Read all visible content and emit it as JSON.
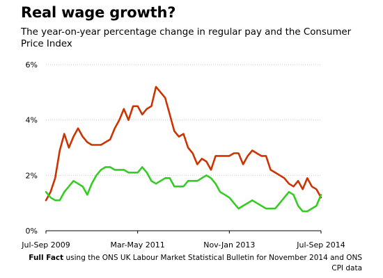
{
  "title": "Real wage growth?",
  "subtitle": "The year-on-year percentage change in regular pay and the Consumer Price Index",
  "source": {
    "brand": "Full Fact",
    "text": " using the ONS UK Labour Market Statistical Bulletin for November 2014 and ONS CPI data"
  },
  "colors": {
    "pay": "#cc3300",
    "cpi": "#33cc22",
    "axis": "#000000",
    "grid": "#cccccc"
  },
  "chart_data": {
    "type": "line",
    "title": "Real wage growth?",
    "xlabel": "",
    "ylabel": "",
    "ylim": [
      0,
      6
    ],
    "y_ticks": [
      "0%",
      "2%",
      "4%",
      "6%"
    ],
    "x_ticks": [
      "Jul-Sep 2009",
      "Mar-May 2011",
      "Nov-Jan 2013",
      "Jul-Sep 2014"
    ],
    "grid": "horizontal dotted",
    "legend": "none",
    "x": [
      "Jul-Sep 2009",
      "Aug-Oct 2009",
      "Sep-Nov 2009",
      "Oct-Dec 2009",
      "Nov-Jan 2010",
      "Dec-Feb 2010",
      "Jan-Mar 2010",
      "Feb-Apr 2010",
      "Mar-May 2010",
      "Apr-Jun 2010",
      "May-Jul 2010",
      "Jun-Aug 2010",
      "Jul-Sep 2010",
      "Aug-Oct 2010",
      "Sep-Nov 2010",
      "Oct-Dec 2010",
      "Nov-Jan 2011",
      "Dec-Feb 2011",
      "Jan-Mar 2011",
      "Feb-Apr 2011",
      "Mar-May 2011",
      "Apr-Jun 2011",
      "May-Jul 2011",
      "Jun-Aug 2011",
      "Jul-Sep 2011",
      "Aug-Oct 2011",
      "Sep-Nov 2011",
      "Oct-Dec 2011",
      "Nov-Jan 2012",
      "Dec-Feb 2012",
      "Jan-Mar 2012",
      "Feb-Apr 2012",
      "Mar-May 2012",
      "Apr-Jun 2012",
      "May-Jul 2012",
      "Jun-Aug 2012",
      "Jul-Sep 2012",
      "Aug-Oct 2012",
      "Sep-Nov 2012",
      "Oct-Dec 2012",
      "Nov-Jan 2013",
      "Dec-Feb 2013",
      "Jan-Mar 2013",
      "Feb-Apr 2013",
      "Mar-May 2013",
      "Apr-Jun 2013",
      "May-Jul 2013",
      "Jun-Aug 2013",
      "Jul-Sep 2013",
      "Aug-Oct 2013",
      "Sep-Nov 2013",
      "Oct-Dec 2013",
      "Nov-Jan 2014",
      "Dec-Feb 2014",
      "Jan-Mar 2014",
      "Feb-Apr 2014",
      "Mar-May 2014",
      "Apr-Jun 2014",
      "May-Jul 2014",
      "Jun-Aug 2014",
      "Jul-Sep 2014"
    ],
    "series": [
      {
        "color": "#cc3300",
        "values": [
          1.1,
          1.4,
          1.9,
          2.9,
          3.5,
          3.0,
          3.4,
          3.7,
          3.4,
          3.2,
          3.1,
          3.1,
          3.1,
          3.2,
          3.3,
          3.7,
          4.0,
          4.4,
          4.0,
          4.5,
          4.5,
          4.2,
          4.4,
          4.5,
          5.2,
          5.0,
          4.8,
          4.2,
          3.6,
          3.4,
          3.5,
          3.0,
          2.8,
          2.4,
          2.6,
          2.5,
          2.2,
          2.7,
          2.7,
          2.7,
          2.7,
          2.8,
          2.8,
          2.4,
          2.7,
          2.9,
          2.8,
          2.7,
          2.7,
          2.2,
          2.1,
          2.0,
          1.9,
          1.7,
          1.6,
          1.8,
          1.5,
          1.9,
          1.6,
          1.5,
          1.2
        ]
      },
      {
        "color": "#33cc22",
        "values": [
          1.4,
          1.2,
          1.1,
          1.1,
          1.4,
          1.6,
          1.8,
          1.7,
          1.6,
          1.3,
          1.7,
          2.0,
          2.2,
          2.3,
          2.3,
          2.2,
          2.2,
          2.2,
          2.1,
          2.1,
          2.1,
          2.3,
          2.1,
          1.8,
          1.7,
          1.8,
          1.9,
          1.9,
          1.6,
          1.6,
          1.6,
          1.8,
          1.8,
          1.8,
          1.9,
          2.0,
          1.9,
          1.7,
          1.4,
          1.3,
          1.2,
          1.0,
          0.8,
          0.9,
          1.0,
          1.1,
          1.0,
          0.9,
          0.8,
          0.8,
          0.8,
          1.0,
          1.2,
          1.4,
          1.3,
          0.9,
          0.7,
          0.7,
          0.8,
          0.9,
          1.3
        ]
      }
    ]
  }
}
